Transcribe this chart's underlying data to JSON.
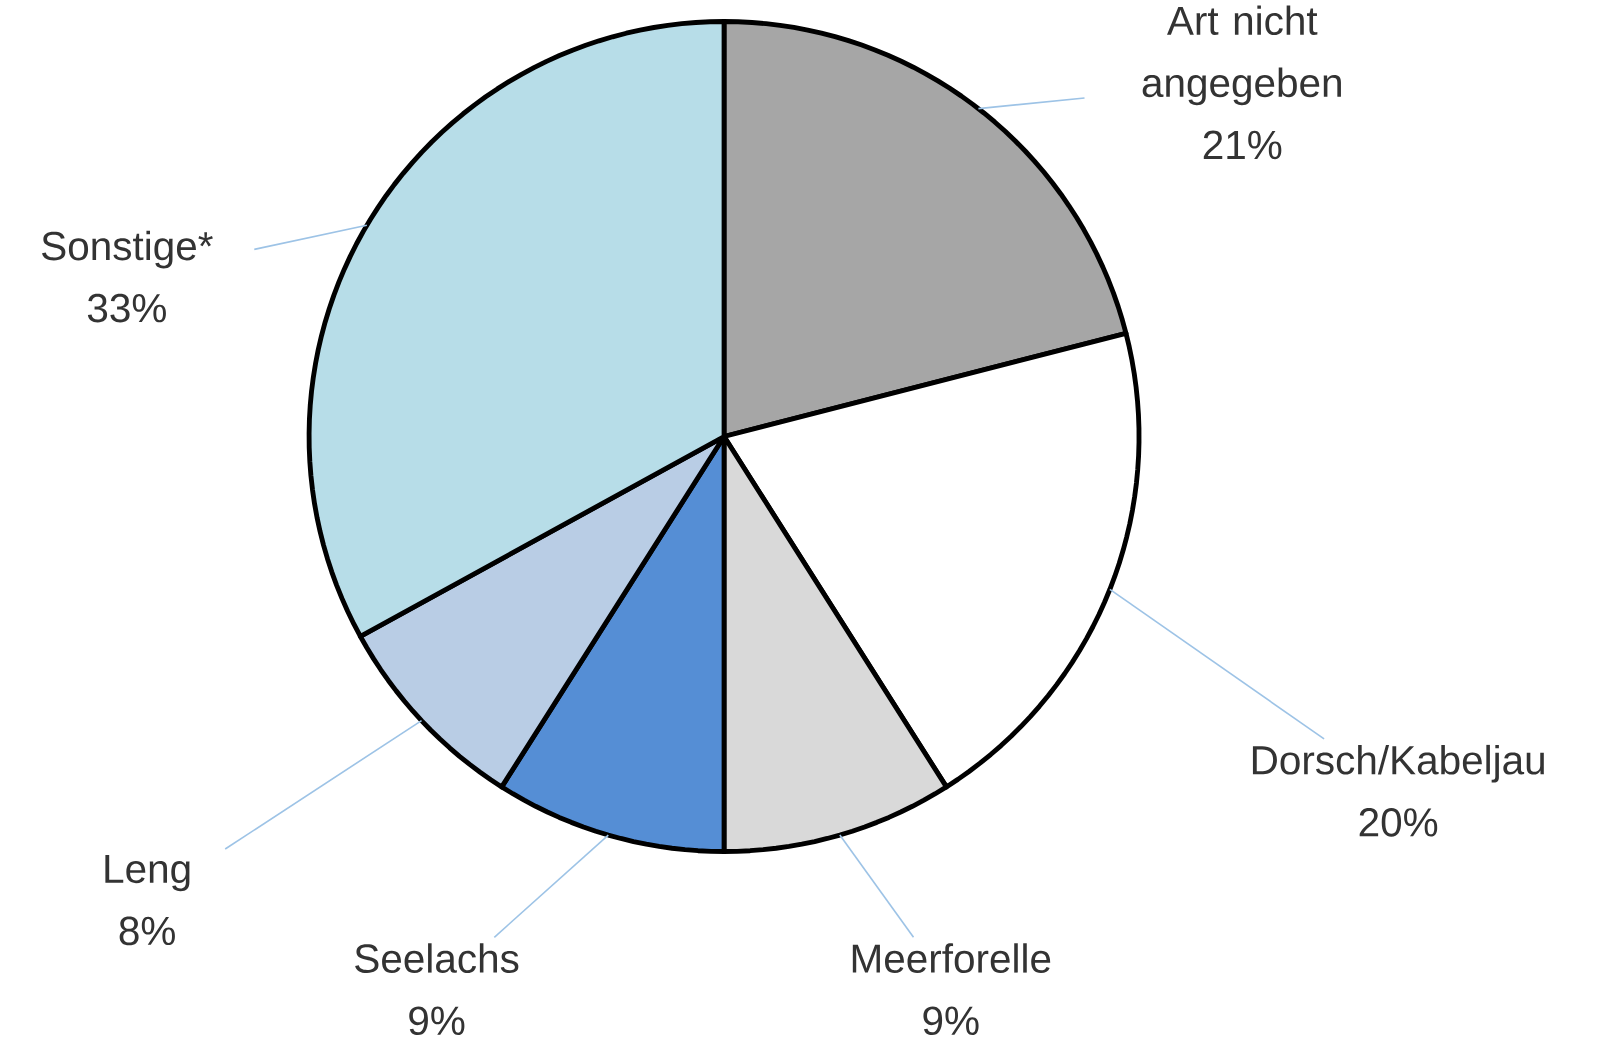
{
  "chart_data": {
    "type": "pie",
    "categories": [
      "Art nicht angegeben",
      "Dorsch/Kabeljau",
      "Meerforelle",
      "Seelachs",
      "Leng",
      "Sonstige*"
    ],
    "values": [
      21,
      20,
      9,
      9,
      8,
      33
    ],
    "value_labels": [
      "21%",
      "20%",
      "9%",
      "9%",
      "8%",
      "33%"
    ],
    "colors": [
      "#a6a6a6",
      "#ffffff",
      "#d9d9d9",
      "#558ed5",
      "#b9cde5",
      "#b7dde8"
    ]
  }
}
